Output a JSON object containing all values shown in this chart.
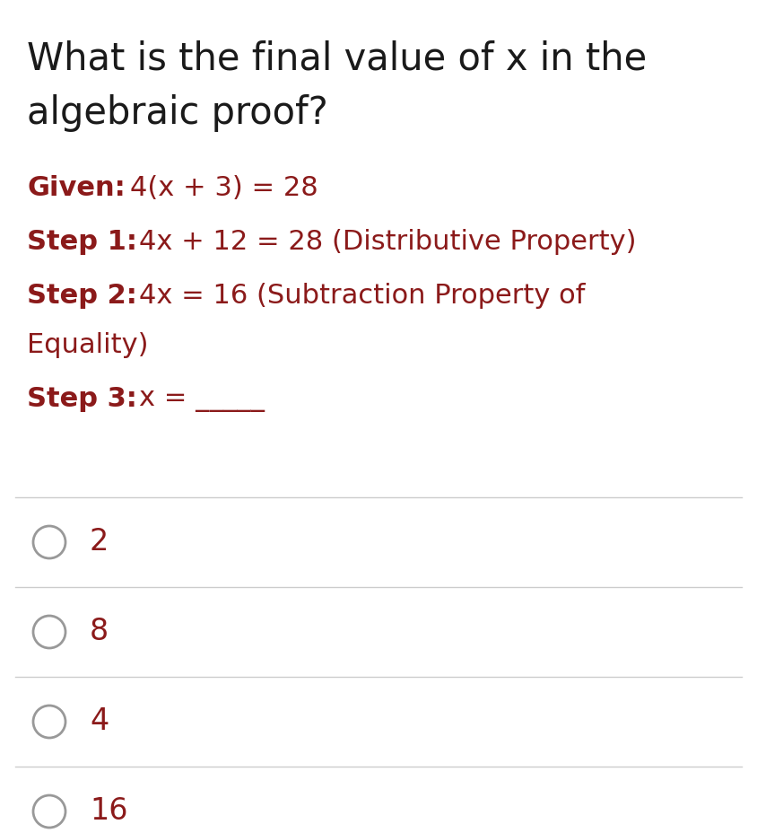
{
  "background_color": "#ffffff",
  "title_line1": "What is the final value of x in the",
  "title_line2": "algebraic proof?",
  "title_color": "#1a1a1a",
  "title_fontsize": 30,
  "dark_red": "#8b1a1a",
  "separator_color": "#cccccc",
  "answer_choices": [
    "2",
    "8",
    "4",
    "16"
  ],
  "answer_fontsize": 24,
  "circle_color": "#999999",
  "proof_fontsize": 22
}
